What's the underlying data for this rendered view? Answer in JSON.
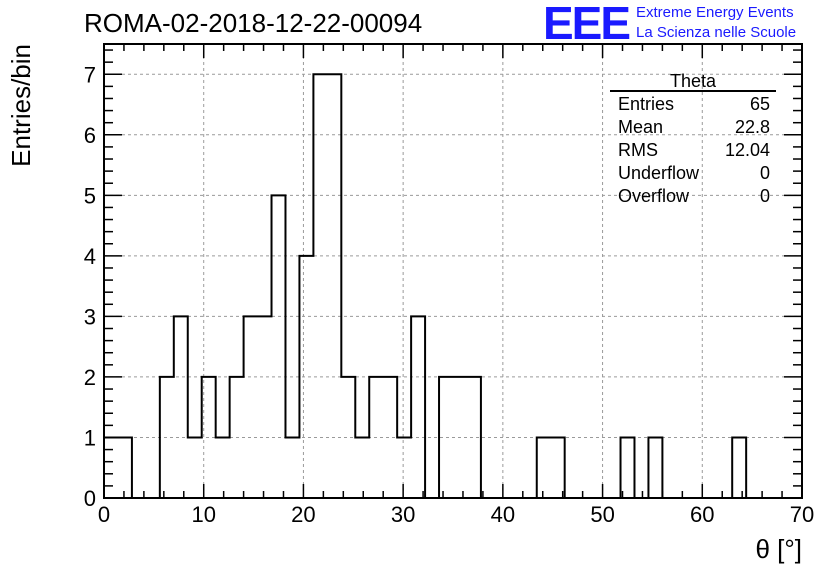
{
  "header": {
    "run_title": "ROMA-02-2018-12-22-00094"
  },
  "logo": {
    "mark": "EEE",
    "line1": "Extreme Energy Events",
    "line2": "La Scienza nelle Scuole"
  },
  "stats": {
    "title": "Theta",
    "rows": [
      {
        "label": "Entries",
        "value": "65"
      },
      {
        "label": "Mean",
        "value": "22.8"
      },
      {
        "label": "RMS",
        "value": "12.04"
      },
      {
        "label": "Underflow",
        "value": "0"
      },
      {
        "label": "Overflow",
        "value": "0"
      }
    ]
  },
  "colors": {
    "line": "#000000",
    "grid": "#9a9a9a",
    "brand": "#1a1aff"
  },
  "chart_data": {
    "type": "bar",
    "histogram": true,
    "xlabel": "θ [°]",
    "ylabel": "Entries/bin",
    "xlim": [
      0,
      70
    ],
    "ylim": [
      0,
      7.5
    ],
    "grid": true,
    "x_ticks": [
      0,
      10,
      20,
      30,
      40,
      50,
      60,
      70
    ],
    "y_ticks": [
      0,
      1,
      2,
      3,
      4,
      5,
      6,
      7
    ],
    "bin_width": 1.4,
    "bin_start": 0,
    "values": [
      1,
      1,
      0,
      0,
      2,
      3,
      1,
      2,
      1,
      2,
      3,
      3,
      5,
      1,
      4,
      7,
      7,
      2,
      1,
      2,
      2,
      1,
      3,
      0,
      2,
      2,
      2,
      0,
      0,
      0,
      0,
      1,
      1,
      0,
      0,
      0,
      0,
      1,
      0,
      1,
      0,
      0,
      0,
      0,
      0,
      1,
      0,
      0,
      0,
      0
    ]
  }
}
